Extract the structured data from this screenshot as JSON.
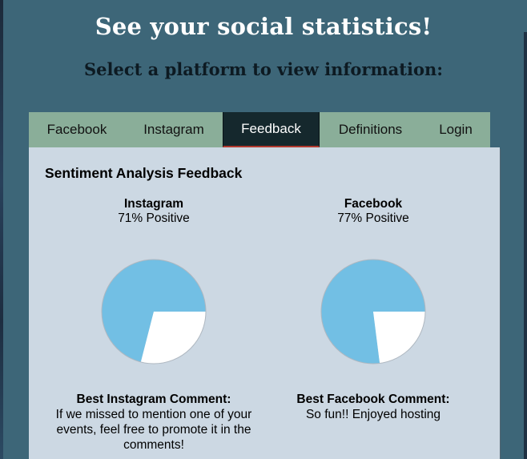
{
  "header": {
    "title": "See your social statistics!",
    "subtitle": "Select a platform to view information:"
  },
  "tabs": [
    {
      "label": "Facebook",
      "active": false
    },
    {
      "label": "Instagram",
      "active": false
    },
    {
      "label": "Feedback",
      "active": true
    },
    {
      "label": "Definitions",
      "active": false
    },
    {
      "label": "Login",
      "active": false
    }
  ],
  "feedback": {
    "title": "Sentiment Analysis Feedback",
    "platforms": [
      {
        "name": "Instagram",
        "positive_text": "71% Positive",
        "best_comment_title": "Best Instagram Comment:",
        "best_comment": "If we missed to mention one of your events, feel free to promote it in the comments!"
      },
      {
        "name": "Facebook",
        "positive_text": "77% Positive",
        "best_comment_title": "Best Facebook Comment:",
        "best_comment": "So fun!! Enjoyed hosting"
      }
    ]
  },
  "chart_data": [
    {
      "type": "pie",
      "title": "Instagram",
      "categories": [
        "Positive",
        "Other"
      ],
      "values": [
        71,
        29
      ],
      "colors": [
        "#72bfe4",
        "#ffffff"
      ]
    },
    {
      "type": "pie",
      "title": "Facebook",
      "categories": [
        "Positive",
        "Other"
      ],
      "values": [
        77,
        23
      ],
      "colors": [
        "#72bfe4",
        "#ffffff"
      ]
    }
  ],
  "colors": {
    "background": "#3d6678",
    "tab_bar": "#8aae99",
    "tab_active": "#15282d",
    "panel": "#ccd8e3",
    "pie_positive": "#72bfe4",
    "pie_other": "#ffffff"
  }
}
